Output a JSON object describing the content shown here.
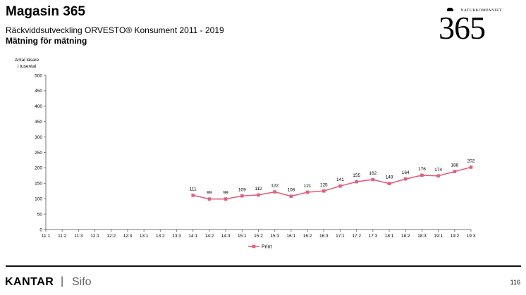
{
  "header": {
    "title": "Magasin 365",
    "subtitle": "Räckviddsutveckling ORVESTO® Konsument 2011 - 2019",
    "subtitle2": "Mätning för mätning"
  },
  "logo": {
    "brand": "NATURKOMPANIET",
    "number": "365"
  },
  "footer": {
    "kantar": "KANTAR",
    "separator": "|",
    "sifo": "Sifo",
    "page_number": "116"
  },
  "chart_data": {
    "type": "line",
    "ylabel": "Antal läsare i tusental",
    "ylim": [
      0,
      500
    ],
    "yticks": [
      0,
      50,
      100,
      150,
      200,
      250,
      300,
      350,
      400,
      450,
      500
    ],
    "categories": [
      "11:1",
      "11:2",
      "11:3",
      "12:1",
      "12:2",
      "12:3",
      "13:1",
      "13:2",
      "13:3",
      "14:1",
      "14:2",
      "14:3",
      "15:1",
      "15:2",
      "15:3",
      "16:1",
      "16:2",
      "16:3",
      "17:1",
      "17:2",
      "17:3",
      "18:1",
      "18:2",
      "18:3",
      "19:1",
      "19:2",
      "19:3"
    ],
    "series": [
      {
        "name": "Print",
        "color": "#e0607e",
        "values": [
          null,
          null,
          null,
          null,
          null,
          null,
          null,
          null,
          null,
          111,
          99,
          99,
          109,
          112,
          122,
          108,
          121,
          125,
          141,
          155,
          162,
          149,
          164,
          176,
          174,
          188,
          202
        ]
      }
    ],
    "legend": "bottom-center",
    "grid": false
  }
}
